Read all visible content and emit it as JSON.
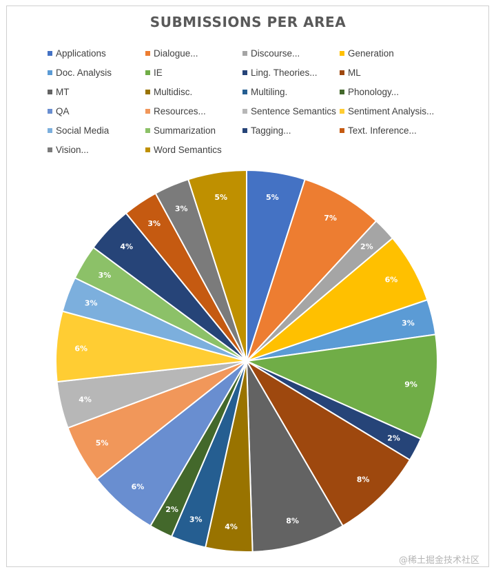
{
  "watermark": "@稀土掘金技术社区",
  "chart_data": {
    "type": "pie",
    "title": "SUBMISSIONS PER AREA",
    "legend_position": "top",
    "slices": [
      {
        "name": "Applications",
        "value": 5,
        "label": "5%",
        "color": "#4472C4"
      },
      {
        "name": "Dialogue...",
        "value": 7,
        "label": "7%",
        "color": "#ED7D31"
      },
      {
        "name": "Discourse...",
        "value": 2,
        "label": "2%",
        "color": "#A5A5A5"
      },
      {
        "name": "Generation",
        "value": 6,
        "label": "6%",
        "color": "#FFC000"
      },
      {
        "name": "Doc. Analysis",
        "value": 3,
        "label": "3%",
        "color": "#5B9BD5"
      },
      {
        "name": "IE",
        "value": 9,
        "label": "9%",
        "color": "#70AD47"
      },
      {
        "name": "Ling. Theories...",
        "value": 2,
        "label": "2%",
        "color": "#264478"
      },
      {
        "name": "ML",
        "value": 8,
        "label": "8%",
        "color": "#9E480E"
      },
      {
        "name": "MT",
        "value": 8,
        "label": "8%",
        "color": "#636363"
      },
      {
        "name": "Multidisc.",
        "value": 4,
        "label": "4%",
        "color": "#997300"
      },
      {
        "name": "Multiling.",
        "value": 3,
        "label": "3%",
        "color": "#255E91"
      },
      {
        "name": "Phonology...",
        "value": 2,
        "label": "2%",
        "color": "#43682B"
      },
      {
        "name": "QA",
        "value": 6,
        "label": "6%",
        "color": "#698ED0"
      },
      {
        "name": "Resources...",
        "value": 5,
        "label": "5%",
        "color": "#F1975A"
      },
      {
        "name": "Sentence Semantics",
        "value": 4,
        "label": "4%",
        "color": "#B7B7B7"
      },
      {
        "name": "Sentiment Analysis...",
        "value": 6,
        "label": "6%",
        "color": "#FFCD33"
      },
      {
        "name": "Social Media",
        "value": 3,
        "label": "3%",
        "color": "#7CAFDD"
      },
      {
        "name": "Summarization",
        "value": 3,
        "label": "3%",
        "color": "#8CC168"
      },
      {
        "name": "Tagging...",
        "value": 4,
        "label": "4%",
        "color": "#264478"
      },
      {
        "name": "Text. Inference...",
        "value": 3,
        "label": "3%",
        "color": "#C55A11"
      },
      {
        "name": "Vision...",
        "value": 3,
        "label": "3%",
        "color": "#7B7B7B"
      },
      {
        "name": "Word Semantics",
        "value": 5,
        "label": "5%",
        "color": "#BF9000"
      }
    ]
  }
}
